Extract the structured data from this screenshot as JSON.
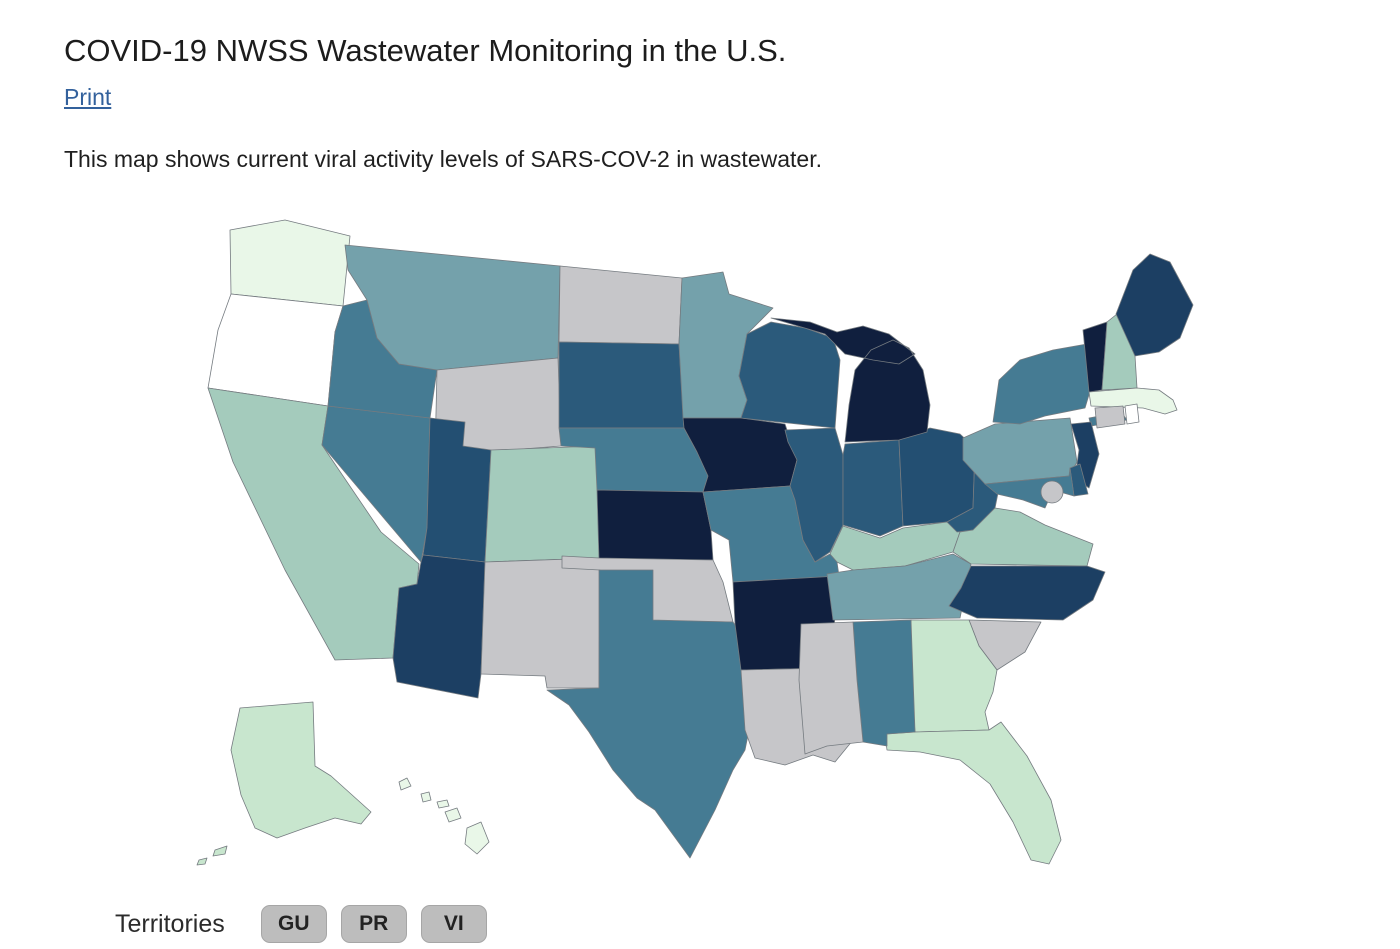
{
  "page": {
    "title": "COVID-19 NWSS Wastewater Monitoring in the U.S.",
    "print_link": "Print",
    "description": "This map shows current viral activity levels of SARS-COV-2 in wastewater."
  },
  "territories": {
    "label": "Territories",
    "buttons": [
      {
        "abbr": "GU",
        "name": "Guam"
      },
      {
        "abbr": "PR",
        "name": "Puerto Rico"
      },
      {
        "abbr": "VI",
        "name": "U.S. Virgin Islands"
      }
    ]
  },
  "map": {
    "type": "choropleth",
    "subject": "SARS-COV-2 wastewater viral activity level by state",
    "border_color": "#757b80",
    "dc_ring_color": "#ffffff",
    "palette": {
      "navy_darkest": "#101f3e",
      "navy": "#1c3f63",
      "blue_dark": "#234f72",
      "blue": "#2b5a7b",
      "blue_medium": "#457b93",
      "teal_gray": "#74a1ab",
      "green_teal": "#a4cbbc",
      "green_light": "#c8e6ce",
      "green_pale": "#e9f7e8",
      "white": "#ffffff",
      "gray": "#c6c6c9"
    },
    "states": [
      {
        "abbr": "WA",
        "name": "Washington",
        "fill": "green_pale"
      },
      {
        "abbr": "OR",
        "name": "Oregon",
        "fill": "white"
      },
      {
        "abbr": "CA",
        "name": "California",
        "fill": "green_teal"
      },
      {
        "abbr": "NV",
        "name": "Nevada",
        "fill": "blue_medium"
      },
      {
        "abbr": "ID",
        "name": "Idaho",
        "fill": "blue_medium"
      },
      {
        "abbr": "MT",
        "name": "Montana",
        "fill": "teal_gray"
      },
      {
        "abbr": "WY",
        "name": "Wyoming",
        "fill": "gray"
      },
      {
        "abbr": "UT",
        "name": "Utah",
        "fill": "blue_dark"
      },
      {
        "abbr": "CO",
        "name": "Colorado",
        "fill": "green_teal"
      },
      {
        "abbr": "AZ",
        "name": "Arizona",
        "fill": "navy"
      },
      {
        "abbr": "NM",
        "name": "New Mexico",
        "fill": "gray"
      },
      {
        "abbr": "ND",
        "name": "North Dakota",
        "fill": "gray"
      },
      {
        "abbr": "SD",
        "name": "South Dakota",
        "fill": "blue"
      },
      {
        "abbr": "NE",
        "name": "Nebraska",
        "fill": "blue_medium"
      },
      {
        "abbr": "KS",
        "name": "Kansas",
        "fill": "navy_darkest"
      },
      {
        "abbr": "OK",
        "name": "Oklahoma",
        "fill": "gray"
      },
      {
        "abbr": "TX",
        "name": "Texas",
        "fill": "blue_medium"
      },
      {
        "abbr": "MN",
        "name": "Minnesota",
        "fill": "teal_gray"
      },
      {
        "abbr": "IA",
        "name": "Iowa",
        "fill": "navy_darkest"
      },
      {
        "abbr": "MO",
        "name": "Missouri",
        "fill": "blue_medium"
      },
      {
        "abbr": "AR",
        "name": "Arkansas",
        "fill": "navy_darkest"
      },
      {
        "abbr": "LA",
        "name": "Louisiana",
        "fill": "gray"
      },
      {
        "abbr": "WI",
        "name": "Wisconsin",
        "fill": "blue"
      },
      {
        "abbr": "IL",
        "name": "Illinois",
        "fill": "blue"
      },
      {
        "abbr": "IN",
        "name": "Indiana",
        "fill": "blue"
      },
      {
        "abbr": "OH",
        "name": "Ohio",
        "fill": "blue_dark"
      },
      {
        "abbr": "MI",
        "name": "Michigan",
        "fill": "navy_darkest"
      },
      {
        "abbr": "KY",
        "name": "Kentucky",
        "fill": "green_teal"
      },
      {
        "abbr": "TN",
        "name": "Tennessee",
        "fill": "teal_gray"
      },
      {
        "abbr": "WV",
        "name": "West Virginia",
        "fill": "blue"
      },
      {
        "abbr": "VA",
        "name": "Virginia",
        "fill": "green_teal"
      },
      {
        "abbr": "NC",
        "name": "North Carolina",
        "fill": "navy"
      },
      {
        "abbr": "SC",
        "name": "South Carolina",
        "fill": "gray"
      },
      {
        "abbr": "GA",
        "name": "Georgia",
        "fill": "green_light"
      },
      {
        "abbr": "FL",
        "name": "Florida",
        "fill": "green_light"
      },
      {
        "abbr": "AL",
        "name": "Alabama",
        "fill": "blue_medium"
      },
      {
        "abbr": "MS",
        "name": "Mississippi",
        "fill": "gray"
      },
      {
        "abbr": "PA",
        "name": "Pennsylvania",
        "fill": "teal_gray"
      },
      {
        "abbr": "NY",
        "name": "New York",
        "fill": "blue_medium"
      },
      {
        "abbr": "NJ",
        "name": "New Jersey",
        "fill": "navy"
      },
      {
        "abbr": "DE",
        "name": "Delaware",
        "fill": "blue"
      },
      {
        "abbr": "MD",
        "name": "Maryland",
        "fill": "blue_medium"
      },
      {
        "abbr": "VT",
        "name": "Vermont",
        "fill": "navy_darkest"
      },
      {
        "abbr": "NH",
        "name": "New Hampshire",
        "fill": "green_teal"
      },
      {
        "abbr": "ME",
        "name": "Maine",
        "fill": "navy"
      },
      {
        "abbr": "MA",
        "name": "Massachusetts",
        "fill": "green_pale"
      },
      {
        "abbr": "CT",
        "name": "Connecticut",
        "fill": "gray"
      },
      {
        "abbr": "RI",
        "name": "Rhode Island",
        "fill": "white"
      },
      {
        "abbr": "AK",
        "name": "Alaska",
        "fill": "green_light"
      },
      {
        "abbr": "HI",
        "name": "Hawaii",
        "fill": "green_pale"
      },
      {
        "abbr": "DC",
        "name": "District of Columbia",
        "fill": "gray"
      }
    ]
  }
}
